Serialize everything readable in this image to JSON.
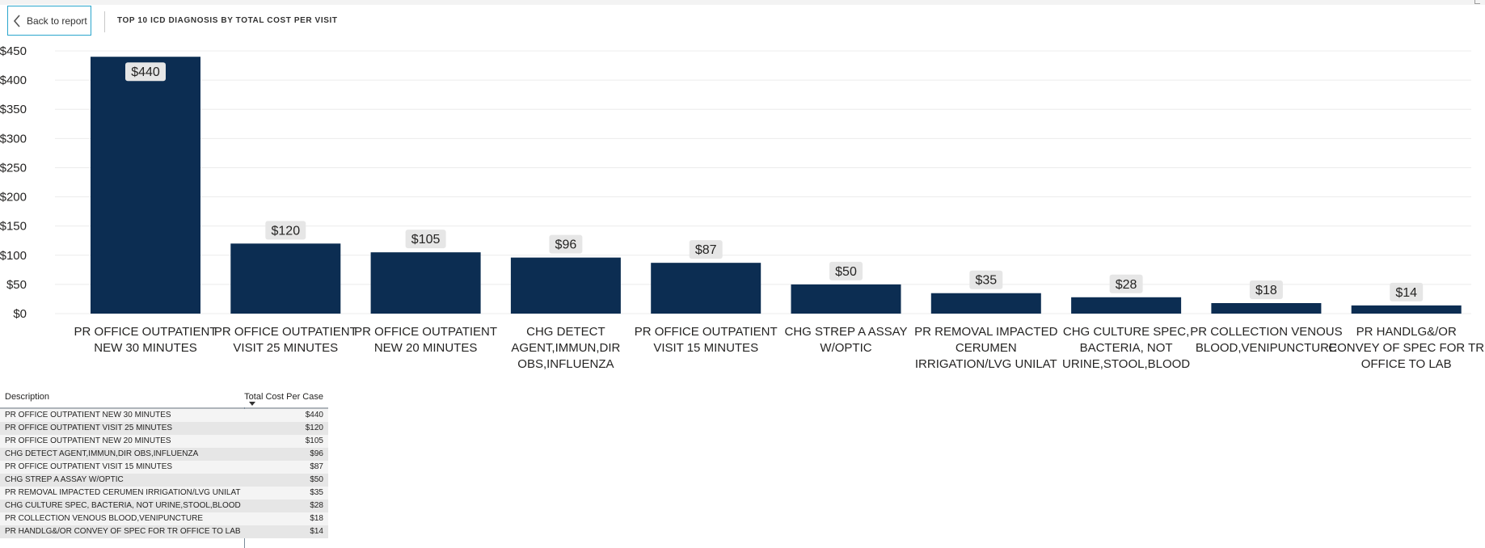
{
  "header": {
    "back_label": "Back to report",
    "title": "TOP 10 ICD DIAGNOSIS BY TOTAL COST PER VISIT"
  },
  "colors": {
    "bar": "#0c2d52",
    "data_label_bg": "#e6e6e6",
    "back_border": "#2aa6cc"
  },
  "chart_data": {
    "type": "bar",
    "title": "TOP 10 ICD DIAGNOSIS BY TOTAL COST PER VISIT",
    "categories": [
      "PR OFFICE OUTPATIENT NEW 30 MINUTES",
      "PR OFFICE OUTPATIENT VISIT 25 MINUTES",
      "PR OFFICE OUTPATIENT NEW 20 MINUTES",
      "CHG DETECT AGENT,IMMUN,DIR OBS,INFLUENZA",
      "PR OFFICE OUTPATIENT VISIT 15 MINUTES",
      "CHG STREP A ASSAY W/OPTIC",
      "PR REMOVAL IMPACTED CERUMEN IRRIGATION/LVG UNILAT",
      "CHG CULTURE SPEC, BACTERIA, NOT URINE,STOOL,BLOOD",
      "PR COLLECTION VENOUS BLOOD,VENIPUNCTURE",
      "PR HANDLG&/OR CONVEY OF SPEC FOR TR OFFICE TO LAB"
    ],
    "category_label_lines": [
      [
        "PR OFFICE OUTPATIENT",
        "NEW 30 MINUTES"
      ],
      [
        "PR OFFICE OUTPATIENT",
        "VISIT 25 MINUTES"
      ],
      [
        "PR OFFICE OUTPATIENT",
        "NEW 20 MINUTES"
      ],
      [
        "CHG DETECT",
        "AGENT,IMMUN,DIR",
        "OBS,INFLUENZA"
      ],
      [
        "PR OFFICE OUTPATIENT",
        "VISIT 15 MINUTES"
      ],
      [
        "CHG STREP A ASSAY",
        "W/OPTIC"
      ],
      [
        "PR REMOVAL IMPACTED",
        "CERUMEN",
        "IRRIGATION/LVG UNILAT"
      ],
      [
        "CHG CULTURE SPEC,",
        "BACTERIA, NOT",
        "URINE,STOOL,BLOOD"
      ],
      [
        "PR COLLECTION VENOUS",
        "BLOOD,VENIPUNCTURE"
      ],
      [
        "PR HANDLG&/OR",
        "CONVEY OF SPEC FOR TR",
        "OFFICE TO LAB"
      ]
    ],
    "values": [
      440,
      120,
      105,
      96,
      87,
      50,
      35,
      28,
      18,
      14
    ],
    "data_labels": [
      "$440",
      "$120",
      "$105",
      "$96",
      "$87",
      "$50",
      "$35",
      "$28",
      "$18",
      "$14"
    ],
    "yticks": [
      0,
      50,
      100,
      150,
      200,
      250,
      300,
      350,
      400,
      450
    ],
    "ytick_labels": [
      "$0",
      "$50",
      "$100",
      "$150",
      "$200",
      "$250",
      "$300",
      "$350",
      "$400",
      "$450"
    ],
    "ylim": [
      0,
      450
    ],
    "grid": true,
    "xlabel": "",
    "ylabel": ""
  },
  "table": {
    "col_description": "Description",
    "col_cost": "Total Cost Per Case",
    "rows": [
      {
        "description": "PR OFFICE OUTPATIENT NEW 30 MINUTES",
        "cost": "$440"
      },
      {
        "description": "PR OFFICE OUTPATIENT VISIT 25 MINUTES",
        "cost": "$120"
      },
      {
        "description": "PR OFFICE OUTPATIENT NEW 20 MINUTES",
        "cost": "$105"
      },
      {
        "description": "CHG DETECT AGENT,IMMUN,DIR OBS,INFLUENZA",
        "cost": "$96"
      },
      {
        "description": "PR OFFICE OUTPATIENT VISIT 15 MINUTES",
        "cost": "$87"
      },
      {
        "description": "CHG STREP A ASSAY W/OPTIC",
        "cost": "$50"
      },
      {
        "description": "PR REMOVAL IMPACTED CERUMEN IRRIGATION/LVG UNILAT",
        "cost": "$35"
      },
      {
        "description": "CHG CULTURE SPEC, BACTERIA, NOT URINE,STOOL,BLOOD",
        "cost": "$28"
      },
      {
        "description": "PR COLLECTION VENOUS BLOOD,VENIPUNCTURE",
        "cost": "$18"
      },
      {
        "description": "PR HANDLG&/OR CONVEY OF SPEC FOR TR OFFICE TO LAB",
        "cost": "$14"
      }
    ]
  }
}
